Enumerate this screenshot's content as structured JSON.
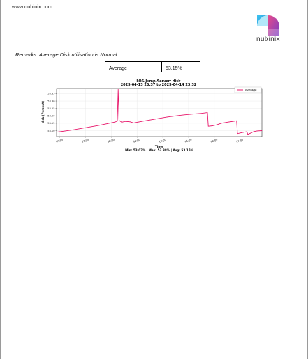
{
  "header": {
    "site_url": "www.nubinix.com",
    "logo_text": "nubinix"
  },
  "remarks": "Remarks: Average Disk utilisation is Normal.",
  "summary_table": {
    "label": "Average",
    "value": "53.15%"
  },
  "chart_data": {
    "type": "line",
    "title": "LOS-Jump-Server: disk",
    "subtitle": "2025-04-13 23:37 to 2025-04-14 23:32",
    "xlabel": "Time",
    "ylabel": "disk (Percent)",
    "footer": "Min: 53.07% | Max: 53.38% | Avg: 53.15%",
    "ylim": [
      53.06,
      53.385
    ],
    "xlim": [
      -0.38,
      23.55
    ],
    "yticks": [
      53.1,
      53.15,
      53.2,
      53.25,
      53.3,
      53.35
    ],
    "ytick_labels": [
      "53.10",
      "53.15",
      "53.20",
      "53.25",
      "53.30",
      "53.35"
    ],
    "xticks": [
      0,
      3,
      6,
      9,
      12,
      15,
      18,
      21
    ],
    "xtick_labels": [
      "00:00",
      "03:00",
      "06:00",
      "09:00",
      "12:00",
      "15:00",
      "18:00",
      "21:00"
    ],
    "grid": true,
    "legend_position": "top-right",
    "series": [
      {
        "name": "Average",
        "color": "#e8176b",
        "points": [
          [
            -0.38,
            53.09
          ],
          [
            0.5,
            53.097
          ],
          [
            1.5,
            53.105
          ],
          [
            2.5,
            53.115
          ],
          [
            3.5,
            53.125
          ],
          [
            4.5,
            53.135
          ],
          [
            5.5,
            53.147
          ],
          [
            6.3,
            53.157
          ],
          [
            6.5,
            53.16
          ],
          [
            6.7,
            53.165
          ],
          [
            6.8,
            53.378
          ],
          [
            6.9,
            53.17
          ],
          [
            7.2,
            53.157
          ],
          [
            7.6,
            53.163
          ],
          [
            8.2,
            53.16
          ],
          [
            8.6,
            53.152
          ],
          [
            9.5,
            53.162
          ],
          [
            10.5,
            53.172
          ],
          [
            11.5,
            53.182
          ],
          [
            12.5,
            53.192
          ],
          [
            13.5,
            53.2
          ],
          [
            14.5,
            53.207
          ],
          [
            15.5,
            53.212
          ],
          [
            16.5,
            53.217
          ],
          [
            17.2,
            53.222
          ],
          [
            17.3,
            53.13
          ],
          [
            17.8,
            53.133
          ],
          [
            18.3,
            53.14
          ],
          [
            18.8,
            53.15
          ],
          [
            19.6,
            53.158
          ],
          [
            20.2,
            53.163
          ],
          [
            20.6,
            53.167
          ],
          [
            20.7,
            53.08
          ],
          [
            21.2,
            53.087
          ],
          [
            21.8,
            53.093
          ],
          [
            21.9,
            53.075
          ],
          [
            22.3,
            53.085
          ],
          [
            22.6,
            53.094
          ],
          [
            23.0,
            53.098
          ],
          [
            23.55,
            53.1
          ]
        ]
      }
    ]
  }
}
